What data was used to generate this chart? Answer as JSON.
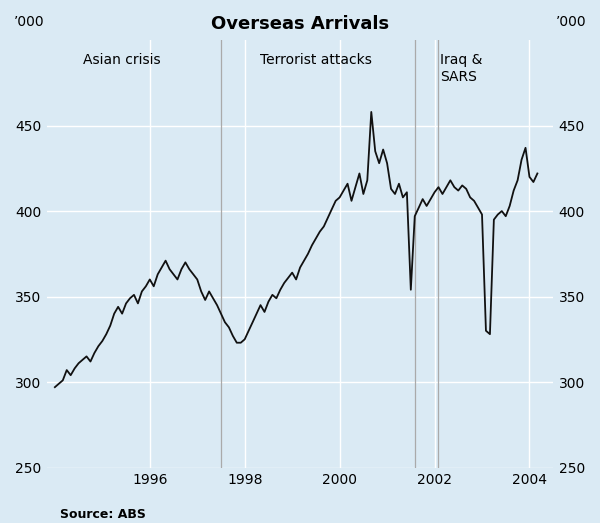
{
  "title": "Overseas Arrivals",
  "ylabel_left": "’000",
  "ylabel_right": "’000",
  "source": "Source: ABS",
  "background_color": "#daeaf4",
  "line_color": "#111111",
  "grid_color": "#ffffff",
  "ylim": [
    250,
    500
  ],
  "yticks": [
    250,
    300,
    350,
    400,
    450
  ],
  "xlim_start": 1993.83,
  "xlim_end": 2004.5,
  "xticks": [
    1996,
    1998,
    2000,
    2002,
    2004
  ],
  "vline_positions": [
    1997.5,
    2001.58,
    2002.08
  ],
  "annotations": [
    {
      "text": "Asian crisis",
      "x": 1995.4,
      "ha": "center"
    },
    {
      "text": "Terrorist attacks",
      "x": 1999.5,
      "ha": "center"
    },
    {
      "text": "Iraq &\nSARS",
      "x": 2001.87,
      "ha": "left"
    }
  ],
  "data": [
    [
      1994.0,
      297
    ],
    [
      1994.083,
      299
    ],
    [
      1994.167,
      301
    ],
    [
      1994.25,
      307
    ],
    [
      1994.333,
      304
    ],
    [
      1994.417,
      308
    ],
    [
      1994.5,
      311
    ],
    [
      1994.583,
      313
    ],
    [
      1994.667,
      315
    ],
    [
      1994.75,
      312
    ],
    [
      1994.833,
      317
    ],
    [
      1994.917,
      321
    ],
    [
      1995.0,
      324
    ],
    [
      1995.083,
      328
    ],
    [
      1995.167,
      333
    ],
    [
      1995.25,
      340
    ],
    [
      1995.333,
      344
    ],
    [
      1995.417,
      340
    ],
    [
      1995.5,
      346
    ],
    [
      1995.583,
      349
    ],
    [
      1995.667,
      351
    ],
    [
      1995.75,
      346
    ],
    [
      1995.833,
      353
    ],
    [
      1995.917,
      356
    ],
    [
      1996.0,
      360
    ],
    [
      1996.083,
      356
    ],
    [
      1996.167,
      363
    ],
    [
      1996.25,
      367
    ],
    [
      1996.333,
      371
    ],
    [
      1996.417,
      366
    ],
    [
      1996.5,
      363
    ],
    [
      1996.583,
      360
    ],
    [
      1996.667,
      366
    ],
    [
      1996.75,
      370
    ],
    [
      1996.833,
      366
    ],
    [
      1996.917,
      363
    ],
    [
      1997.0,
      360
    ],
    [
      1997.083,
      353
    ],
    [
      1997.167,
      348
    ],
    [
      1997.25,
      353
    ],
    [
      1997.333,
      349
    ],
    [
      1997.417,
      345
    ],
    [
      1997.5,
      340
    ],
    [
      1997.583,
      335
    ],
    [
      1997.667,
      332
    ],
    [
      1997.75,
      327
    ],
    [
      1997.833,
      323
    ],
    [
      1997.917,
      323
    ],
    [
      1998.0,
      325
    ],
    [
      1998.083,
      330
    ],
    [
      1998.167,
      335
    ],
    [
      1998.25,
      340
    ],
    [
      1998.333,
      345
    ],
    [
      1998.417,
      341
    ],
    [
      1998.5,
      347
    ],
    [
      1998.583,
      351
    ],
    [
      1998.667,
      349
    ],
    [
      1998.75,
      354
    ],
    [
      1998.833,
      358
    ],
    [
      1998.917,
      361
    ],
    [
      1999.0,
      364
    ],
    [
      1999.083,
      360
    ],
    [
      1999.167,
      367
    ],
    [
      1999.25,
      371
    ],
    [
      1999.333,
      375
    ],
    [
      1999.417,
      380
    ],
    [
      1999.5,
      384
    ],
    [
      1999.583,
      388
    ],
    [
      1999.667,
      391
    ],
    [
      1999.75,
      396
    ],
    [
      1999.833,
      401
    ],
    [
      1999.917,
      406
    ],
    [
      2000.0,
      408
    ],
    [
      2000.083,
      412
    ],
    [
      2000.167,
      416
    ],
    [
      2000.25,
      406
    ],
    [
      2000.333,
      414
    ],
    [
      2000.417,
      422
    ],
    [
      2000.5,
      410
    ],
    [
      2000.583,
      418
    ],
    [
      2000.667,
      458
    ],
    [
      2000.75,
      435
    ],
    [
      2000.833,
      428
    ],
    [
      2000.917,
      436
    ],
    [
      2001.0,
      428
    ],
    [
      2001.083,
      413
    ],
    [
      2001.167,
      410
    ],
    [
      2001.25,
      416
    ],
    [
      2001.333,
      408
    ],
    [
      2001.417,
      411
    ],
    [
      2001.5,
      354
    ],
    [
      2001.583,
      397
    ],
    [
      2001.667,
      402
    ],
    [
      2001.75,
      407
    ],
    [
      2001.833,
      403
    ],
    [
      2001.917,
      407
    ],
    [
      2002.0,
      411
    ],
    [
      2002.083,
      414
    ],
    [
      2002.167,
      410
    ],
    [
      2002.25,
      414
    ],
    [
      2002.333,
      418
    ],
    [
      2002.417,
      414
    ],
    [
      2002.5,
      412
    ],
    [
      2002.583,
      415
    ],
    [
      2002.667,
      413
    ],
    [
      2002.75,
      408
    ],
    [
      2002.833,
      406
    ],
    [
      2002.917,
      402
    ],
    [
      2003.0,
      398
    ],
    [
      2003.083,
      330
    ],
    [
      2003.167,
      328
    ],
    [
      2003.25,
      395
    ],
    [
      2003.333,
      398
    ],
    [
      2003.417,
      400
    ],
    [
      2003.5,
      397
    ],
    [
      2003.583,
      403
    ],
    [
      2003.667,
      412
    ],
    [
      2003.75,
      418
    ],
    [
      2003.833,
      430
    ],
    [
      2003.917,
      437
    ],
    [
      2004.0,
      420
    ],
    [
      2004.083,
      417
    ],
    [
      2004.167,
      422
    ]
  ]
}
